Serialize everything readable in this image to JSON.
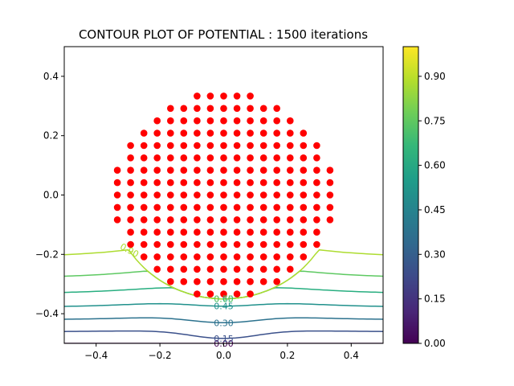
{
  "chart_data": {
    "type": "contour",
    "title": "CONTOUR PLOT OF POTENTIAL : 1500 iterations",
    "xlabel": "",
    "ylabel": "",
    "xlim": [
      -0.5,
      0.5
    ],
    "ylim": [
      -0.5,
      0.5
    ],
    "x_ticks": [
      -0.4,
      -0.2,
      0.0,
      0.2,
      0.4
    ],
    "x_tick_labels": [
      "−0.4",
      "−0.2",
      "0.0",
      "0.2",
      "0.4"
    ],
    "y_ticks": [
      -0.4,
      -0.2,
      0.0,
      0.2,
      0.4
    ],
    "y_tick_labels": [
      "−0.4",
      "−0.2",
      "0.0",
      "0.2",
      "0.4"
    ],
    "grid": false,
    "colormap": "viridis",
    "colorbar": {
      "range": [
        0.0,
        1.0
      ],
      "ticks": [
        0.0,
        0.15,
        0.3,
        0.45,
        0.6,
        0.75,
        0.9
      ],
      "tick_labels": [
        "0.00",
        "0.15",
        "0.30",
        "0.45",
        "0.60",
        "0.75",
        "0.90"
      ],
      "stops": [
        "#440154",
        "#482878",
        "#3e4989",
        "#31688e",
        "#26828e",
        "#1f9e89",
        "#35b779",
        "#6ece58",
        "#b5de2b",
        "#fde725"
      ]
    },
    "contour_levels": [
      {
        "level": 0.0,
        "label": "0.00",
        "color": "#440154"
      },
      {
        "level": 0.15,
        "label": "0.15",
        "color": "#3b518b"
      },
      {
        "level": 0.3,
        "label": "0.30",
        "color": "#2c728e"
      },
      {
        "level": 0.45,
        "label": "0.45",
        "color": "#21918c"
      },
      {
        "level": 0.6,
        "label": "0.60",
        "color": "#28ae80"
      },
      {
        "level": 0.75,
        "label": "0.75",
        "color": "#5ec962"
      },
      {
        "level": 0.9,
        "label": "0.90",
        "color": "#addc30"
      }
    ],
    "electrode": {
      "color": "#ff0000",
      "grid_spacing": 0.0417,
      "center": [
        0.0,
        0.0
      ],
      "radius": 0.35,
      "marker": "circle"
    }
  }
}
